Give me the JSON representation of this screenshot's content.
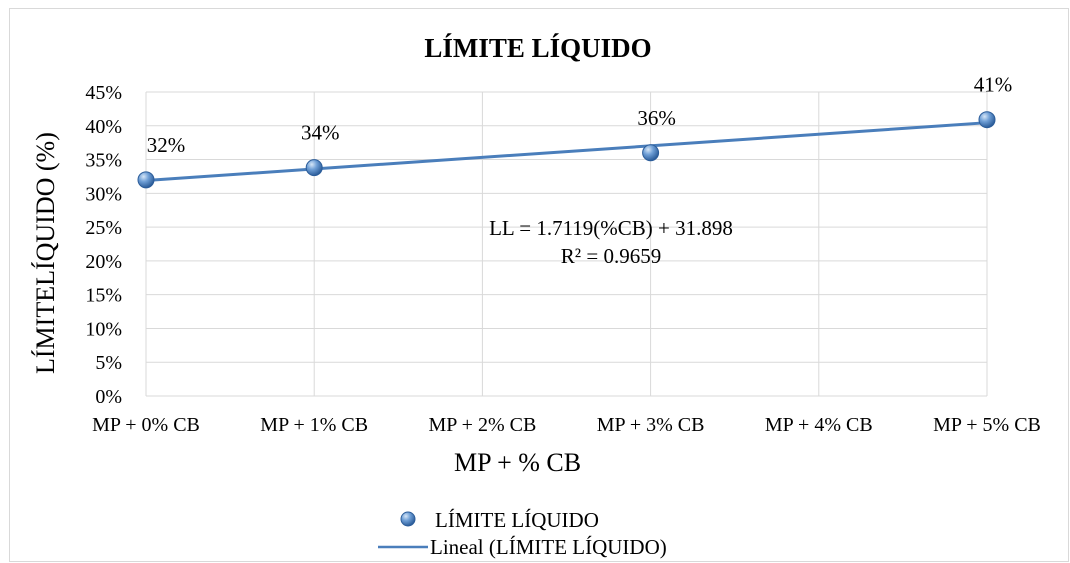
{
  "chart_data": {
    "type": "scatter",
    "title": "LÍMITE LÍQUIDO",
    "xlabel": "MP + % CB",
    "ylabel": "LÍMITELÍQUIDO (%)",
    "categories": [
      "MP + 0% CB",
      "MP + 1% CB",
      "MP + 2% CB",
      "MP + 3% CB",
      "MP + 4% CB",
      "MP + 5% CB"
    ],
    "y_ticks": [
      "0%",
      "5%",
      "10%",
      "15%",
      "20%",
      "25%",
      "30%",
      "35%",
      "40%",
      "45%"
    ],
    "ylim": [
      0,
      45
    ],
    "grid": true,
    "series": [
      {
        "name": "LÍMITE LÍQUIDO",
        "points": [
          {
            "x": "MP + 0% CB",
            "y": 32,
            "label": "32%"
          },
          {
            "x": "MP + 1% CB",
            "y": 33.8,
            "label": "34%"
          },
          {
            "x": "MP + 3% CB",
            "y": 36,
            "label": "36%"
          },
          {
            "x": "MP + 5% CB",
            "y": 40.9,
            "label": "41%"
          }
        ],
        "color": "#4f81bd"
      }
    ],
    "trendline": {
      "name": "Lineal (LÍMITE LÍQUIDO)",
      "type": "linear",
      "slope": 1.7119,
      "intercept": 31.898,
      "equation": "LL = 1.7119(%CB) + 31.898",
      "r2": "R² = 0.9659",
      "color": "#4a7ebb"
    },
    "legend": {
      "position": "bottom",
      "entries": [
        "LÍMITE LÍQUIDO",
        "Lineal (LÍMITE LÍQUIDO)"
      ]
    }
  }
}
